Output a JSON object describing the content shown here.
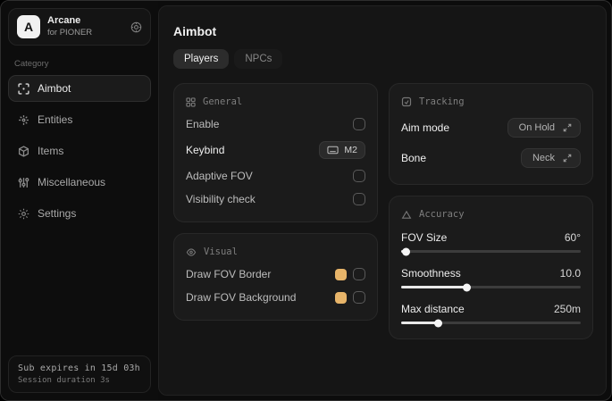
{
  "sidebar": {
    "logo_letter": "A",
    "app_name": "Arcane",
    "app_subtitle": "for PIONER",
    "category_label": "Category",
    "items": [
      {
        "label": "Aimbot",
        "icon": "crosshair-icon",
        "active": true
      },
      {
        "label": "Entities",
        "icon": "radar-icon",
        "active": false
      },
      {
        "label": "Items",
        "icon": "cube-icon",
        "active": false
      },
      {
        "label": "Miscellaneous",
        "icon": "sliders-icon",
        "active": false
      },
      {
        "label": "Settings",
        "icon": "gear-icon",
        "active": false
      }
    ],
    "footer": {
      "line1": "Sub expires in 15d 03h",
      "line2": "Session duration 3s"
    }
  },
  "main": {
    "title": "Aimbot",
    "tabs": [
      {
        "label": "Players",
        "active": true
      },
      {
        "label": "NPCs",
        "active": false
      }
    ],
    "general": {
      "title": "General",
      "rows": [
        {
          "label": "Enable",
          "control": "checkbox",
          "checked": false
        },
        {
          "label": "Keybind",
          "control": "keybind",
          "key": "M2"
        },
        {
          "label": "Adaptive FOV",
          "control": "checkbox",
          "checked": false
        },
        {
          "label": "Visibility check",
          "control": "checkbox",
          "checked": false
        }
      ]
    },
    "visual": {
      "title": "Visual",
      "swatch_color": "#e7b469",
      "rows": [
        {
          "label": "Draw FOV Border",
          "checked": false
        },
        {
          "label": "Draw FOV Background",
          "checked": false
        }
      ]
    },
    "tracking": {
      "title": "Tracking",
      "rows": [
        {
          "label": "Aim mode",
          "value": "On Hold"
        },
        {
          "label": "Bone",
          "value": "Neck"
        }
      ]
    },
    "accuracy": {
      "title": "Accuracy",
      "rows": [
        {
          "label": "FOV Size",
          "value": "60°",
          "percent": 3
        },
        {
          "label": "Smoothness",
          "value": "10.0",
          "percent": 37
        },
        {
          "label": "Max distance",
          "value": "250m",
          "percent": 21
        }
      ]
    }
  }
}
